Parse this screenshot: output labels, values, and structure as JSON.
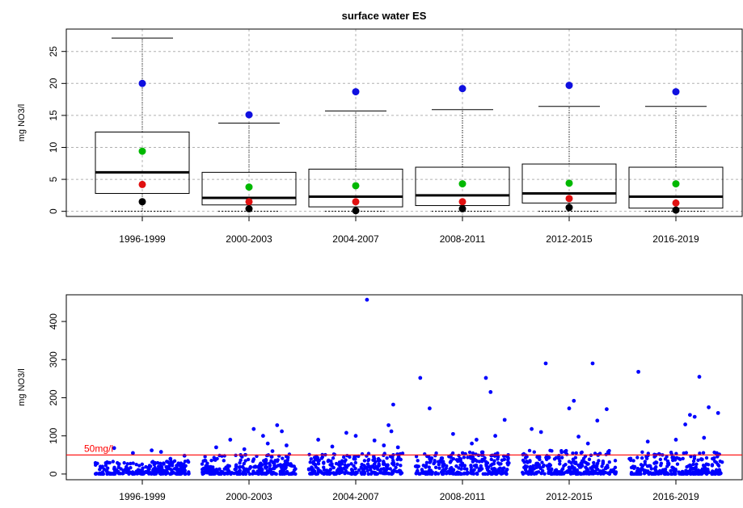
{
  "chart_data": [
    {
      "type": "box",
      "title": "surface water ES",
      "xlabel": "",
      "ylabel": "mg NO3/l",
      "categories": [
        "1996-1999",
        "2000-2003",
        "2004-2007",
        "2008-2011",
        "2012-2015",
        "2016-2019"
      ],
      "yticks": [
        0,
        5,
        10,
        15,
        20,
        25
      ],
      "ylim": [
        -0.8,
        28.5
      ],
      "grid": true,
      "boxes": [
        {
          "min": 0,
          "q1": 2.8,
          "median": 6.1,
          "q3": 12.4,
          "max": 27.1
        },
        {
          "min": 0,
          "q1": 1.0,
          "median": 2.1,
          "q3": 6.1,
          "max": 13.8
        },
        {
          "min": 0,
          "q1": 0.7,
          "median": 2.3,
          "q3": 6.6,
          "max": 15.7
        },
        {
          "min": 0,
          "q1": 0.9,
          "median": 2.5,
          "q3": 6.9,
          "max": 15.9
        },
        {
          "min": 0,
          "q1": 1.3,
          "median": 2.8,
          "q3": 7.4,
          "max": 16.4
        },
        {
          "min": 0,
          "q1": 0.5,
          "median": 2.3,
          "q3": 6.9,
          "max": 16.4
        }
      ],
      "markers": [
        {
          "color": "#1010e0",
          "values": [
            20.0,
            15.1,
            18.7,
            19.2,
            19.7,
            18.7
          ]
        },
        {
          "color": "#00b800",
          "values": [
            9.4,
            3.8,
            4.0,
            4.3,
            4.4,
            4.3
          ]
        },
        {
          "color": "#e01010",
          "values": [
            4.2,
            1.5,
            1.5,
            1.5,
            2.0,
            1.3
          ]
        },
        {
          "color": "#000000",
          "values": [
            1.5,
            0.4,
            0.1,
            0.4,
            0.6,
            0.2
          ]
        }
      ]
    },
    {
      "type": "scatter",
      "title": "",
      "xlabel": "",
      "ylabel": "mg NO3/l",
      "categories": [
        "1996-1999",
        "2000-2003",
        "2004-2007",
        "2008-2011",
        "2012-2015",
        "2016-2019"
      ],
      "yticks": [
        0,
        100,
        200,
        300,
        400
      ],
      "ylim": [
        -15,
        470
      ],
      "grid": false,
      "point_color": "#0000ff",
      "reference_line": {
        "value": 50,
        "label": "50mg/l",
        "color": "#ff0000"
      },
      "outliers": [
        [
          [
            -0.3,
            68
          ],
          [
            0.1,
            62
          ],
          [
            0.45,
            48
          ],
          [
            -0.1,
            55
          ],
          [
            0.3,
            40
          ],
          [
            0.2,
            58
          ]
        ],
        [
          [
            -0.2,
            90
          ],
          [
            0.05,
            118
          ],
          [
            0.3,
            128
          ],
          [
            0.35,
            112
          ],
          [
            0.4,
            75
          ],
          [
            -0.05,
            65
          ],
          [
            0.2,
            80
          ],
          [
            -0.35,
            70
          ],
          [
            0.15,
            100
          ],
          [
            0.25,
            60
          ]
        ],
        [
          [
            0.12,
            457
          ],
          [
            0.4,
            182
          ],
          [
            0.35,
            128
          ],
          [
            0.38,
            112
          ],
          [
            -0.1,
            108
          ],
          [
            0.0,
            100
          ],
          [
            -0.4,
            90
          ],
          [
            0.2,
            88
          ],
          [
            0.3,
            75
          ],
          [
            0.45,
            70
          ],
          [
            -0.25,
            72
          ]
        ],
        [
          [
            -0.45,
            252
          ],
          [
            -0.35,
            172
          ],
          [
            0.25,
            252
          ],
          [
            0.3,
            215
          ],
          [
            0.45,
            142
          ],
          [
            0.35,
            100
          ],
          [
            0.15,
            90
          ],
          [
            -0.1,
            105
          ],
          [
            0.1,
            80
          ]
        ],
        [
          [
            -0.4,
            118
          ],
          [
            -0.3,
            110
          ],
          [
            -0.25,
            290
          ],
          [
            0.05,
            192
          ],
          [
            0.0,
            172
          ],
          [
            0.25,
            290
          ],
          [
            0.3,
            140
          ],
          [
            0.4,
            170
          ],
          [
            0.1,
            98
          ],
          [
            0.2,
            80
          ]
        ],
        [
          [
            -0.4,
            268
          ],
          [
            0.25,
            255
          ],
          [
            0.35,
            175
          ],
          [
            0.45,
            160
          ],
          [
            0.15,
            155
          ],
          [
            0.2,
            150
          ],
          [
            0.1,
            130
          ],
          [
            -0.3,
            85
          ],
          [
            0.0,
            90
          ],
          [
            0.3,
            95
          ]
        ]
      ],
      "cluster_heights": [
        35,
        52,
        55,
        60,
        62,
        58
      ]
    }
  ]
}
